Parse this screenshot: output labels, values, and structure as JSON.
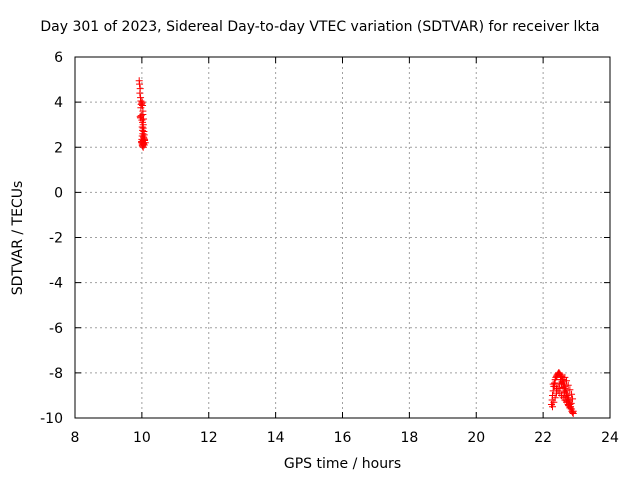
{
  "chart_data": {
    "type": "scatter",
    "title": "Day 301 of 2023, Sidereal Day-to-day VTEC variation (SDTVAR) for receiver lkta",
    "xlabel": "GPS time / hours",
    "ylabel": "SDTVAR / TECUs",
    "xlim": [
      8,
      24
    ],
    "ylim": [
      -10,
      6
    ],
    "xticks": [
      "8",
      "10",
      "12",
      "14",
      "16",
      "18",
      "20",
      "22",
      "24"
    ],
    "yticks": [
      "-10",
      "-8",
      "-6",
      "-4",
      "-2",
      "0",
      "2",
      "4",
      "6"
    ],
    "grid": true,
    "marker": "+",
    "color": "#ff0000",
    "series": [
      {
        "x": [
          9.92,
          9.93,
          9.95,
          9.94,
          9.96,
          9.97,
          9.98,
          9.97,
          10.0,
          10.01,
          10.02,
          10.03,
          9.98,
          9.96,
          9.95,
          10.0,
          10.02,
          10.04,
          10.05,
          10.03,
          10.01,
          10.02,
          10.04,
          10.06,
          10.07,
          10.05,
          10.03,
          10.01,
          10.0,
          9.99,
          10.02,
          10.04,
          10.06,
          10.08,
          10.05,
          10.03,
          10.01,
          9.99,
          10.02,
          10.05,
          10.08,
          10.1,
          10.07,
          10.04,
          10.02
        ],
        "y": [
          4.95,
          4.8,
          4.6,
          4.4,
          4.2,
          4.05,
          3.9,
          3.75,
          3.95,
          4.0,
          3.85,
          3.6,
          3.4,
          3.3,
          3.35,
          3.2,
          3.1,
          3.0,
          3.25,
          3.45,
          2.9,
          2.75,
          2.85,
          2.7,
          2.55,
          2.45,
          2.6,
          2.5,
          2.35,
          2.25,
          2.2,
          2.3,
          2.4,
          2.35,
          2.2,
          2.15,
          2.1,
          2.2,
          2.05,
          2.15,
          2.3,
          2.2,
          2.1,
          2.0,
          2.25
        ]
      },
      {
        "x": [
          22.25,
          22.27,
          22.28,
          22.3,
          22.32,
          22.34,
          22.36,
          22.38,
          22.4,
          22.42,
          22.44,
          22.46,
          22.48,
          22.5,
          22.52,
          22.54,
          22.56,
          22.58,
          22.6,
          22.62,
          22.64,
          22.66,
          22.68,
          22.7,
          22.72,
          22.74,
          22.76,
          22.78,
          22.8,
          22.82,
          22.84,
          22.86,
          22.88,
          22.9,
          22.28,
          22.32,
          22.36,
          22.4,
          22.44,
          22.48,
          22.52,
          22.56,
          22.6,
          22.64,
          22.68,
          22.72,
          22.76,
          22.8,
          22.84,
          22.88,
          22.3,
          22.35,
          22.4,
          22.45,
          22.5,
          22.55,
          22.6,
          22.65,
          22.7,
          22.75,
          22.8,
          22.85,
          22.9,
          22.5,
          22.55,
          22.6,
          22.65,
          22.7,
          22.75,
          22.8,
          22.85
        ],
        "y": [
          -9.4,
          -9.2,
          -9.0,
          -8.8,
          -8.6,
          -8.45,
          -8.3,
          -8.2,
          -8.15,
          -8.1,
          -8.05,
          -8.0,
          -8.0,
          -8.05,
          -8.1,
          -8.15,
          -8.2,
          -8.3,
          -8.4,
          -8.5,
          -8.6,
          -8.7,
          -8.8,
          -8.9,
          -9.0,
          -9.1,
          -9.2,
          -9.3,
          -9.4,
          -9.5,
          -9.6,
          -9.7,
          -9.75,
          -9.8,
          -9.5,
          -9.3,
          -9.1,
          -8.9,
          -8.7,
          -8.5,
          -8.3,
          -8.45,
          -8.65,
          -8.85,
          -9.05,
          -9.25,
          -9.45,
          -9.55,
          -9.35,
          -9.15,
          -8.5,
          -8.6,
          -8.7,
          -8.8,
          -8.9,
          -9.0,
          -9.1,
          -9.2,
          -9.3,
          -9.4,
          -9.5,
          -9.6,
          -9.7,
          -8.7,
          -8.5,
          -8.3,
          -8.2,
          -8.35,
          -8.55,
          -8.75,
          -8.95
        ]
      }
    ]
  }
}
